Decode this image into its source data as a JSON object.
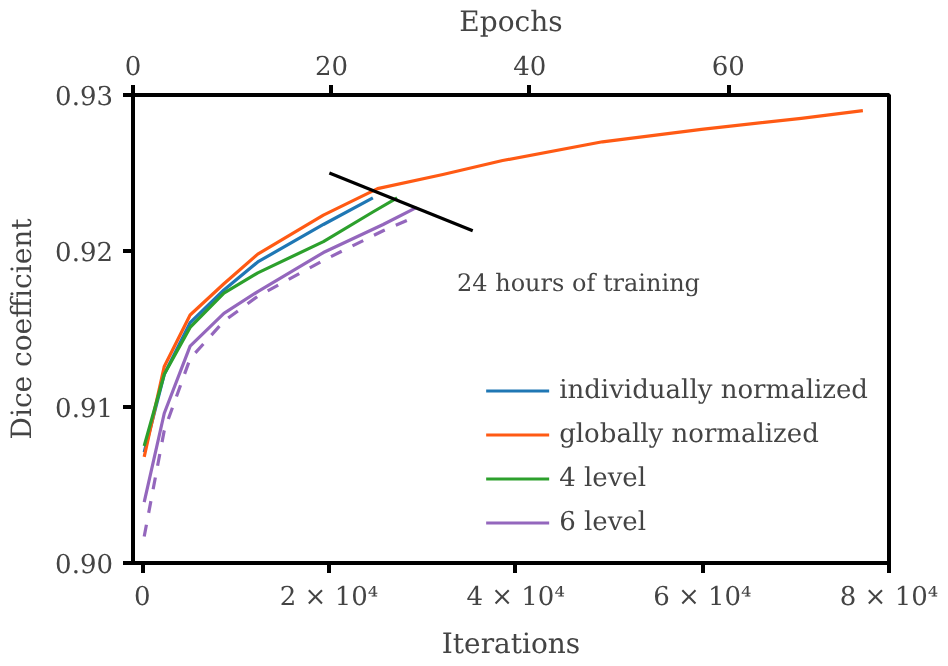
{
  "chart_data": {
    "type": "line",
    "xlabel": "Iterations",
    "ylabel": "Dice coefficient",
    "x2label": "Epochs",
    "xlim": [
      -1000,
      80000
    ],
    "ylim": [
      0.9,
      0.93
    ],
    "xticks": [
      0,
      {
        "value": 20000,
        "label": "2 × 10⁴"
      },
      {
        "value": 40000,
        "label": "4 × 10⁴"
      },
      {
        "value": 60000,
        "label": "6 × 10⁴"
      },
      {
        "value": 80000,
        "label": "8 × 10⁴"
      }
    ],
    "yticks": [
      {
        "value": 0.9,
        "label": "0.90"
      },
      {
        "value": 0.91,
        "label": "0.91"
      },
      {
        "value": 0.92,
        "label": "0.92"
      },
      {
        "value": 0.93,
        "label": "0.93"
      }
    ],
    "x2lim": [
      0,
      76.2
    ],
    "x2ticks": [
      0,
      20,
      40,
      60
    ],
    "grid": false,
    "legend": "bottom right",
    "line_style": "solid",
    "series": [
      {
        "name": "individually normalized",
        "color": "#1f77b4",
        "x": [
          200,
          2350,
          5120,
          8740,
          12370,
          19400,
          24700
        ],
        "values": [
          0.9071,
          0.9121,
          0.9154,
          0.9175,
          0.9193,
          0.9217,
          0.9234
        ]
      },
      {
        "name": "globally normalized",
        "color": "#ff5a14",
        "x": [
          200,
          2350,
          5120,
          8740,
          12370,
          19400,
          25200,
          32200,
          38600,
          49300,
          59900,
          70600,
          77200
        ],
        "values": [
          0.9068,
          0.9126,
          0.9159,
          0.9179,
          0.9198,
          0.9223,
          0.924,
          0.9249,
          0.9258,
          0.927,
          0.9278,
          0.9285,
          0.929
        ]
      },
      {
        "name": "4 level",
        "color": "#2ca02c",
        "x": [
          200,
          2350,
          5120,
          8740,
          12370,
          19400,
          24700,
          27300
        ],
        "values": [
          0.9075,
          0.9121,
          0.9151,
          0.9173,
          0.9186,
          0.9206,
          0.9225,
          0.9234
        ]
      },
      {
        "name": "6 level",
        "color": "#9467bd",
        "x": [
          200,
          2350,
          5120,
          8740,
          12370,
          19400,
          25800,
          29400
        ],
        "values": [
          0.9039,
          0.9096,
          0.9139,
          0.916,
          0.9174,
          0.9199,
          0.9217,
          0.9228
        ]
      },
      {
        "color": "#9467bd",
        "line_style": "dashed",
        "x": [
          200,
          2350,
          5120,
          8740,
          12370,
          19400,
          25800,
          28900
        ],
        "values": [
          0.9017,
          0.9085,
          0.9131,
          0.9155,
          0.9171,
          0.9194,
          0.9213,
          0.9221
        ]
      },
      {
        "color": "#000000",
        "x": [
          20040,
          35400
        ],
        "values": [
          0.925,
          0.9213
        ]
      }
    ],
    "annotations": [
      "24 hours of training"
    ]
  }
}
